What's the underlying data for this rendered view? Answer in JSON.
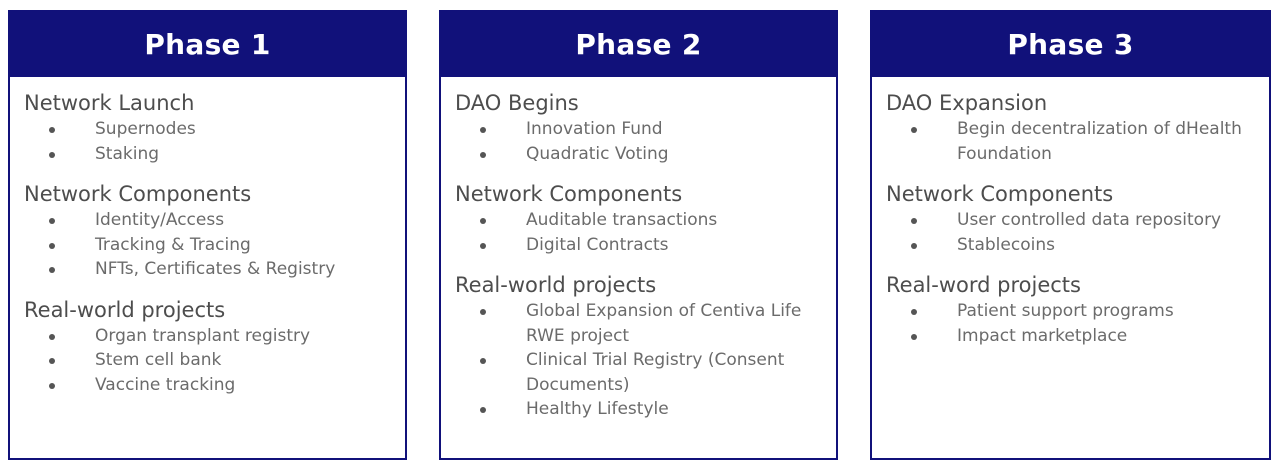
{
  "colors": {
    "header_bg": "#11117a",
    "header_text": "#ffffff",
    "heading_text": "#4d4d4d",
    "bullet_text": "#6b6b6b"
  },
  "phases": [
    {
      "title": "Phase 1",
      "sections": [
        {
          "heading": "Network Launch",
          "items": [
            "Supernodes",
            "Staking"
          ]
        },
        {
          "heading": "Network Components",
          "items": [
            "Identity/Access",
            "Tracking & Tracing",
            "NFTs, Certificates & Registry"
          ]
        },
        {
          "heading": "Real-world projects",
          "items": [
            "Organ transplant registry",
            "Stem cell bank",
            "Vaccine tracking"
          ]
        }
      ]
    },
    {
      "title": "Phase 2",
      "sections": [
        {
          "heading": "DAO Begins",
          "items": [
            "Innovation Fund",
            "Quadratic Voting"
          ]
        },
        {
          "heading": "Network Components",
          "items": [
            "Auditable transactions",
            "Digital Contracts"
          ]
        },
        {
          "heading": "Real-world projects",
          "items": [
            "Global Expansion of Centiva Life RWE project",
            "Clinical Trial Registry (Consent Documents)",
            "Healthy Lifestyle"
          ]
        }
      ]
    },
    {
      "title": "Phase 3",
      "sections": [
        {
          "heading": "DAO Expansion",
          "items": [
            "Begin decentralization of dHealth Foundation"
          ]
        },
        {
          "heading": "Network Components",
          "items": [
            "User controlled data repository",
            "Stablecoins"
          ]
        },
        {
          "heading": "Real-word projects",
          "items": [
            "Patient support programs",
            "Impact marketplace"
          ]
        }
      ]
    }
  ]
}
